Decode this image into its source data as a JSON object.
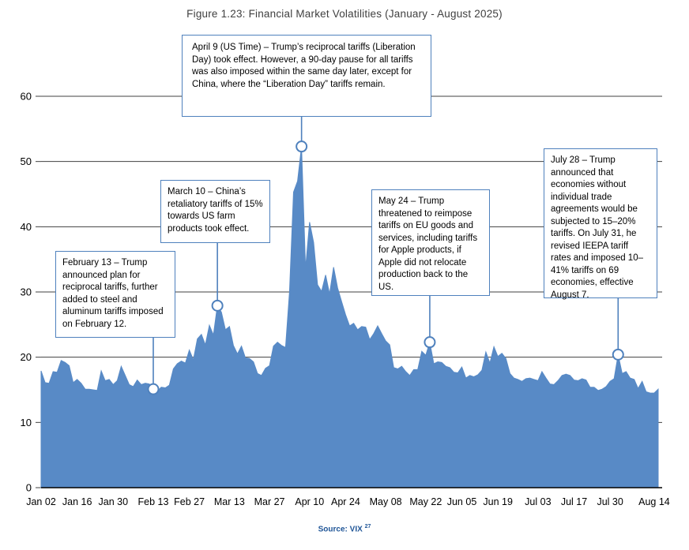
{
  "title": "Figure 1.23: Financial Market Volatilities (January - August 2025)",
  "source": {
    "label": "Source: VIX",
    "footnote": "27"
  },
  "chart_data": {
    "type": "area",
    "title": "Figure 1.23: Financial Market Volatilities (January - August 2025)",
    "xlabel": "",
    "ylabel": "",
    "ylim": [
      0,
      60
    ],
    "yticks": [
      0,
      10,
      20,
      30,
      40,
      50,
      60
    ],
    "grid": "horizontal",
    "legend": "none",
    "series_name": "VIX",
    "dates": [
      "Jan 02",
      "Jan 03",
      "Jan 06",
      "Jan 07",
      "Jan 08",
      "Jan 10",
      "Jan 13",
      "Jan 14",
      "Jan 15",
      "Jan 16",
      "Jan 17",
      "Jan 21",
      "Jan 22",
      "Jan 23",
      "Jan 24",
      "Jan 27",
      "Jan 28",
      "Jan 29",
      "Jan 30",
      "Jan 31",
      "Feb 03",
      "Feb 04",
      "Feb 05",
      "Feb 06",
      "Feb 07",
      "Feb 10",
      "Feb 11",
      "Feb 12",
      "Feb 13",
      "Feb 14",
      "Feb 18",
      "Feb 19",
      "Feb 20",
      "Feb 21",
      "Feb 24",
      "Feb 25",
      "Feb 26",
      "Feb 27",
      "Feb 28",
      "Mar 03",
      "Mar 04",
      "Mar 05",
      "Mar 06",
      "Mar 07",
      "Mar 10",
      "Mar 11",
      "Mar 12",
      "Mar 13",
      "Mar 14",
      "Mar 17",
      "Mar 18",
      "Mar 19",
      "Mar 20",
      "Mar 21",
      "Mar 24",
      "Mar 25",
      "Mar 26",
      "Mar 27",
      "Mar 28",
      "Mar 31",
      "Apr 01",
      "Apr 02",
      "Apr 03",
      "Apr 04",
      "Apr 07",
      "Apr 08",
      "Apr 09",
      "Apr 10",
      "Apr 11",
      "Apr 14",
      "Apr 15",
      "Apr 16",
      "Apr 17",
      "Apr 21",
      "Apr 22",
      "Apr 23",
      "Apr 24",
      "Apr 25",
      "Apr 28",
      "Apr 29",
      "Apr 30",
      "May 01",
      "May 02",
      "May 05",
      "May 06",
      "May 07",
      "May 08",
      "May 09",
      "May 12",
      "May 13",
      "May 14",
      "May 15",
      "May 16",
      "May 19",
      "May 20",
      "May 21",
      "May 22",
      "May 23",
      "May 27",
      "May 28",
      "May 29",
      "May 30",
      "Jun 02",
      "Jun 03",
      "Jun 04",
      "Jun 05",
      "Jun 06",
      "Jun 09",
      "Jun 10",
      "Jun 11",
      "Jun 12",
      "Jun 13",
      "Jun 16",
      "Jun 17",
      "Jun 18",
      "Jun 20",
      "Jun 23",
      "Jun 24",
      "Jun 25",
      "Jun 26",
      "Jun 27",
      "Jun 30",
      "Jul 01",
      "Jul 02",
      "Jul 03",
      "Jul 07",
      "Jul 08",
      "Jul 09",
      "Jul 10",
      "Jul 11",
      "Jul 14",
      "Jul 15",
      "Jul 16",
      "Jul 17",
      "Jul 18",
      "Jul 21",
      "Jul 22",
      "Jul 23",
      "Jul 24",
      "Jul 25",
      "Jul 28",
      "Jul 29",
      "Jul 30",
      "Jul 31",
      "Aug 01",
      "Aug 04",
      "Aug 05",
      "Aug 06",
      "Aug 07",
      "Aug 08",
      "Aug 11",
      "Aug 12",
      "Aug 13",
      "Aug 14",
      "Aug 15"
    ],
    "values": [
      17.9,
      16.1,
      16.0,
      17.8,
      17.7,
      19.5,
      19.2,
      18.7,
      16.1,
      16.6,
      16.0,
      15.1,
      15.1,
      15.0,
      14.9,
      17.9,
      16.4,
      16.6,
      15.8,
      16.4,
      18.6,
      17.2,
      15.8,
      15.5,
      16.5,
      15.8,
      16.0,
      15.9,
      15.1,
      14.8,
      15.4,
      15.3,
      15.7,
      18.2,
      19.0,
      19.4,
      19.1,
      21.1,
      19.6,
      22.8,
      23.5,
      21.9,
      24.9,
      23.4,
      27.9,
      26.9,
      24.2,
      24.7,
      21.8,
      20.5,
      21.7,
      19.9,
      19.8,
      19.3,
      17.5,
      17.2,
      18.3,
      18.7,
      21.7,
      22.3,
      21.8,
      21.5,
      30.0,
      45.3,
      47.0,
      52.3,
      33.6,
      40.7,
      37.6,
      31.1,
      30.1,
      32.6,
      29.7,
      33.8,
      30.6,
      28.5,
      26.5,
      24.8,
      25.2,
      24.2,
      24.7,
      24.6,
      22.7,
      23.6,
      24.8,
      23.6,
      22.5,
      21.9,
      18.4,
      18.2,
      18.6,
      17.8,
      17.2,
      18.1,
      18.1,
      20.9,
      20.3,
      22.3,
      19.0,
      19.3,
      19.2,
      18.6,
      18.4,
      17.7,
      17.6,
      18.5,
      16.8,
      17.2,
      17.0,
      17.3,
      18.0,
      20.8,
      19.1,
      21.6,
      20.1,
      20.6,
      19.8,
      17.5,
      16.8,
      16.6,
      16.3,
      16.7,
      16.8,
      16.6,
      16.4,
      17.8,
      16.8,
      15.9,
      15.8,
      16.4,
      17.2,
      17.4,
      17.2,
      16.5,
      16.4,
      16.7,
      16.5,
      15.4,
      15.4,
      14.9,
      15.1,
      15.5,
      16.3,
      16.7,
      20.4,
      17.5,
      17.8,
      16.8,
      16.6,
      15.2,
      16.3,
      14.7,
      14.5,
      14.5,
      15.1
    ],
    "xticks": [
      {
        "label": "Jan 02",
        "i": 0
      },
      {
        "label": "Jan 16",
        "i": 9
      },
      {
        "label": "Jan 30",
        "i": 18
      },
      {
        "label": "Feb 13",
        "i": 28
      },
      {
        "label": "Feb 27",
        "i": 37
      },
      {
        "label": "Mar 13",
        "i": 47
      },
      {
        "label": "Mar 27",
        "i": 57
      },
      {
        "label": "Apr 10",
        "i": 67
      },
      {
        "label": "Apr 24",
        "i": 76
      },
      {
        "label": "May 08",
        "i": 86
      },
      {
        "label": "May 22",
        "i": 96
      },
      {
        "label": "Jun 05",
        "i": 105
      },
      {
        "label": "Jun 19",
        "i": 114
      },
      {
        "label": "Jul 03",
        "i": 124
      },
      {
        "label": "Jul 17",
        "i": 133
      },
      {
        "label": "Jul 30",
        "i": 142
      },
      {
        "label": "Aug 14",
        "i": 153
      }
    ],
    "annotations": [
      {
        "id": "feb13",
        "text": "February 13 – Trump announced plan for reciprocal tariffs, further added to steel and aluminum tariffs imposed on February 12.",
        "point_index": 28,
        "value": 15.1
      },
      {
        "id": "mar10",
        "text": "March 10 – China’s retaliatory tariffs of 15% towards US farm products took effect.",
        "point_index": 44,
        "value": 27.9
      },
      {
        "id": "apr09",
        "text": "April 9 (US Time) – Trump’s reciprocal tariffs (Liberation Day) took effect. However, a 90-day pause for all tariffs was also imposed within the same day later, except for China, where the “Liberation Day” tariffs remain.",
        "point_index": 65,
        "value": 52.3
      },
      {
        "id": "may24",
        "text": "May 24 – Trump threatened to reimpose tariffs on EU goods and services, including tariffs for Apple products, if Apple did not relocate production back to the US.",
        "point_index": 97,
        "value": 22.3
      },
      {
        "id": "jul28",
        "text": "July 28 – Trump announced that economies without individual trade agreements would be subjected to 15–20% tariffs. On July 31, he revised IEEPA tariff rates and imposed 10–41% tariffs on 69 economies, effective August 7.",
        "point_index": 144,
        "value": 20.4
      }
    ],
    "colors": {
      "area": "#588AC6",
      "annotation": "#4F81BD",
      "gridline": "#404040",
      "axis": "#000000",
      "tick_label": "#000000",
      "title": "#404040",
      "source": "#1F5597"
    }
  }
}
